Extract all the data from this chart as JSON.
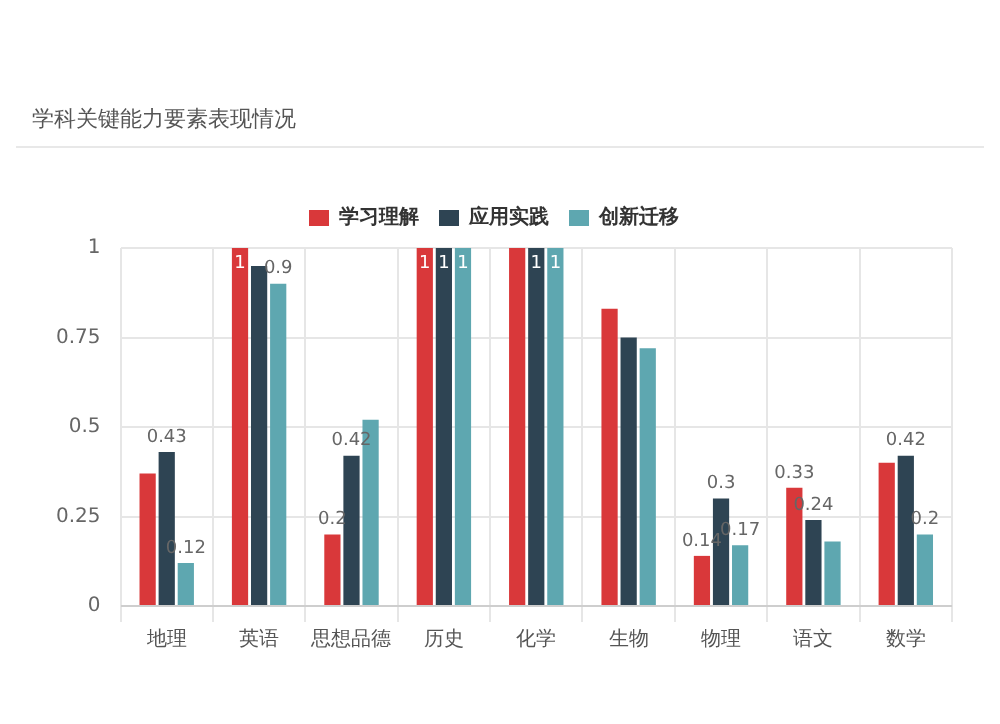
{
  "chart_data": {
    "type": "bar",
    "title": "学科关键能力要素表现情况",
    "categories": [
      "地理",
      "英语",
      "思想品德",
      "历史",
      "化学",
      "生物",
      "物理",
      "语文",
      "数学"
    ],
    "series": [
      {
        "name": "学习理解",
        "color": "#d9383a",
        "values": [
          0.37,
          1,
          0.2,
          1,
          1,
          0.83,
          0.14,
          0.33,
          0.4
        ],
        "value_labels": [
          null,
          "1",
          "0.2",
          "1",
          null,
          null,
          "0.14",
          "0.33",
          null
        ]
      },
      {
        "name": "应用实践",
        "color": "#2e4453",
        "values": [
          0.43,
          0.95,
          0.42,
          1,
          1,
          0.75,
          0.3,
          0.24,
          0.42
        ],
        "value_labels": [
          "0.43",
          null,
          "0.42",
          "1",
          "1",
          null,
          "0.3",
          "0.24",
          "0.42"
        ]
      },
      {
        "name": "创新迁移",
        "color": "#5ea7b0",
        "values": [
          0.12,
          0.9,
          0.52,
          1,
          1,
          0.72,
          0.17,
          0.18,
          0.2
        ],
        "value_labels": [
          "0.12",
          "0.9",
          null,
          "1",
          "1",
          null,
          "0.17",
          null,
          "0.2"
        ]
      }
    ],
    "ylim": [
      0,
      1
    ],
    "yticks": [
      0,
      0.25,
      0.5,
      0.75,
      1
    ],
    "grid": true,
    "legend": "top"
  }
}
